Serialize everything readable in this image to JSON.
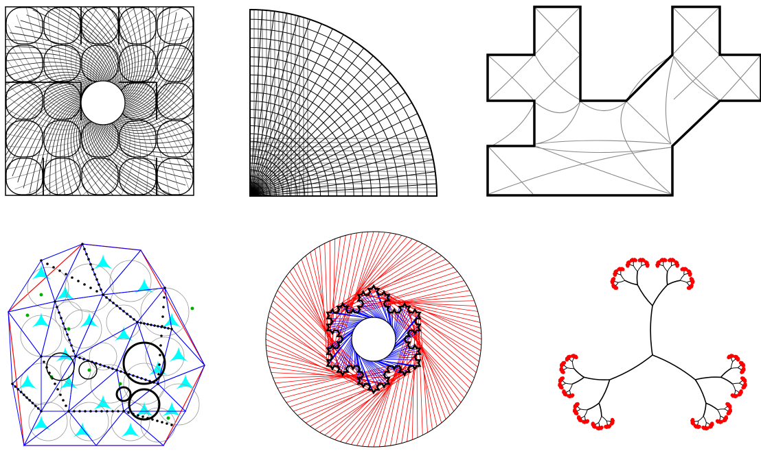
{
  "figure": {
    "panel_count": 6,
    "panels": [
      {
        "id": "square-with-hole",
        "kind": "conformal-grid-square"
      },
      {
        "id": "quarter-disk",
        "kind": "polar-grid"
      },
      {
        "id": "polygon-medial",
        "kind": "medial-axis-polygon"
      },
      {
        "id": "triangulated-polygon",
        "kind": "triangulation"
      },
      {
        "id": "koch-annulus",
        "kind": "snowflake-flow"
      },
      {
        "id": "fractal-tree",
        "kind": "ternary-tree"
      }
    ],
    "colors": {
      "ink": "#000000",
      "grey": "#888888",
      "red": "#ff0000",
      "blue": "#0000ff",
      "cyan": "#00ffff",
      "green": "#00b000"
    }
  }
}
